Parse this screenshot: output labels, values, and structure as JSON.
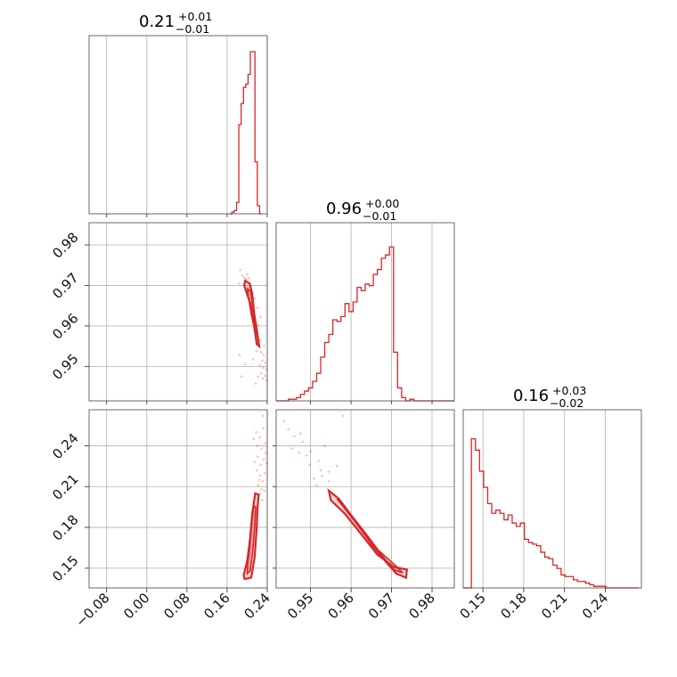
{
  "colors": {
    "series": "#d62728",
    "grid": "#b0b0b0",
    "frame": "#444444"
  },
  "chart_data": {
    "type": "corner",
    "grid": true,
    "parameters": [
      {
        "title": {
          "value": "0.21",
          "plus": "+0.01",
          "minus": "−0.01"
        },
        "range": [
          -0.115,
          0.24
        ],
        "ticks": [
          -0.08,
          0.0,
          0.08,
          0.16,
          0.24
        ],
        "tick_labels": [
          "−0.08",
          "0.00",
          "0.08",
          "0.16",
          "0.24"
        ],
        "histogram": {
          "bin_edges": [
            0.165,
            0.1696,
            0.1742,
            0.1788,
            0.1834,
            0.188,
            0.1926,
            0.1972,
            0.2018,
            0.2064,
            0.211,
            0.2156,
            0.2202,
            0.2248,
            0.2294
          ],
          "counts": [
            0,
            0.01,
            0.02,
            0.07,
            0.55,
            0.68,
            0.78,
            0.8,
            0.86,
            1.0,
            1.0,
            0.32,
            0.05,
            0.0
          ]
        }
      },
      {
        "title": {
          "value": "0.96",
          "plus": "+0.00",
          "minus": "−0.01"
        },
        "range": [
          0.9415,
          0.9855
        ],
        "ticks": [
          0.95,
          0.96,
          0.97,
          0.98
        ],
        "tick_labels": [
          "0.95",
          "0.96",
          "0.97",
          "0.98"
        ],
        "histogram": {
          "bin_edges": [
            0.9415,
            0.9425,
            0.9435,
            0.9445,
            0.9455,
            0.9465,
            0.9475,
            0.9485,
            0.9495,
            0.9505,
            0.9515,
            0.9525,
            0.9535,
            0.9545,
            0.9555,
            0.9565,
            0.9575,
            0.9585,
            0.9595,
            0.9605,
            0.9615,
            0.9625,
            0.9635,
            0.9645,
            0.9655,
            0.9665,
            0.9675,
            0.9685,
            0.9695,
            0.9705,
            0.9715,
            0.9725,
            0.9735,
            0.9745,
            0.9755,
            0.9765,
            0.9775,
            0.9785,
            0.9795,
            0.9805,
            0.9815,
            0.9825,
            0.9835,
            0.9845,
            0.9855
          ],
          "counts": [
            0.0,
            0.0,
            0.0,
            0.01,
            0.01,
            0.02,
            0.04,
            0.06,
            0.08,
            0.12,
            0.17,
            0.27,
            0.36,
            0.41,
            0.5,
            0.49,
            0.52,
            0.6,
            0.55,
            0.61,
            0.7,
            0.68,
            0.72,
            0.71,
            0.78,
            0.81,
            0.88,
            0.9,
            0.95,
            0.3,
            0.08,
            0.02,
            0.0,
            0.01,
            0.0,
            0.0,
            0.0,
            0.0,
            0.0,
            0.0,
            0.0,
            0.0,
            0.0,
            0.0
          ]
        }
      },
      {
        "title": {
          "value": "0.16",
          "plus": "+0.03",
          "minus": "−0.02"
        },
        "range": [
          0.1355,
          0.2665
        ],
        "ticks": [
          0.15,
          0.18,
          0.21,
          0.24
        ],
        "tick_labels": [
          "0.15",
          "0.18",
          "0.21",
          "0.24"
        ],
        "histogram": {
          "bin_edges": [
            0.1355,
            0.1385,
            0.1415,
            0.1445,
            0.1475,
            0.1505,
            0.1535,
            0.1565,
            0.1595,
            0.1625,
            0.1655,
            0.1685,
            0.1715,
            0.1745,
            0.1775,
            0.1805,
            0.1835,
            0.1865,
            0.1895,
            0.1925,
            0.1955,
            0.1985,
            0.2015,
            0.2045,
            0.2075,
            0.2105,
            0.2135,
            0.2165,
            0.2195,
            0.2225,
            0.2255,
            0.2285,
            0.2315,
            0.2345,
            0.2375,
            0.2405,
            0.2435,
            0.2465,
            0.2495,
            0.2525,
            0.2555,
            0.2585,
            0.2615,
            0.2645
          ],
          "counts": [
            0.0,
            0.0,
            0.92,
            0.85,
            0.72,
            0.62,
            0.52,
            0.46,
            0.48,
            0.46,
            0.42,
            0.45,
            0.4,
            0.38,
            0.4,
            0.3,
            0.28,
            0.27,
            0.26,
            0.22,
            0.19,
            0.18,
            0.14,
            0.12,
            0.08,
            0.07,
            0.07,
            0.05,
            0.04,
            0.04,
            0.03,
            0.02,
            0.01,
            0.01,
            0.01,
            0.0,
            0.0,
            0.0,
            0.0,
            0.0,
            0.0,
            0.0,
            0.0
          ]
        }
      }
    ],
    "pairs": [
      {
        "x_param": 0,
        "y_param": 1,
        "outer_contour": [
          [
            0.196,
            0.9712
          ],
          [
            0.205,
            0.9705
          ],
          [
            0.21,
            0.968
          ],
          [
            0.214,
            0.963
          ],
          [
            0.22,
            0.9585
          ],
          [
            0.224,
            0.955
          ],
          [
            0.219,
            0.9555
          ],
          [
            0.213,
            0.9608
          ],
          [
            0.207,
            0.9652
          ],
          [
            0.199,
            0.9682
          ],
          [
            0.194,
            0.97
          ]
        ],
        "inner_contour": [
          [
            0.201,
            0.9692
          ],
          [
            0.207,
            0.9685
          ],
          [
            0.211,
            0.965
          ],
          [
            0.216,
            0.9605
          ],
          [
            0.218,
            0.9578
          ],
          [
            0.214,
            0.9595
          ],
          [
            0.208,
            0.963
          ],
          [
            0.202,
            0.9675
          ]
        ],
        "samples": [
          [
            0.186,
            0.9738
          ],
          [
            0.19,
            0.9725
          ],
          [
            0.194,
            0.972
          ],
          [
            0.198,
            0.9716
          ],
          [
            0.203,
            0.9718
          ],
          [
            0.2,
            0.9728
          ],
          [
            0.184,
            0.9705
          ],
          [
            0.205,
            0.9695
          ],
          [
            0.215,
            0.9668
          ],
          [
            0.209,
            0.9657
          ],
          [
            0.221,
            0.9645
          ],
          [
            0.222,
            0.9602
          ],
          [
            0.226,
            0.9565
          ],
          [
            0.228,
            0.9535
          ],
          [
            0.233,
            0.9528
          ],
          [
            0.23,
            0.9515
          ],
          [
            0.236,
            0.951
          ],
          [
            0.225,
            0.9502
          ],
          [
            0.232,
            0.9497
          ],
          [
            0.238,
            0.9493
          ],
          [
            0.228,
            0.9483
          ],
          [
            0.236,
            0.9477
          ],
          [
            0.231,
            0.947
          ],
          [
            0.222,
            0.9475
          ],
          [
            0.239,
            0.9465
          ],
          [
            0.185,
            0.9528
          ],
          [
            0.196,
            0.9505
          ],
          [
            0.217,
            0.9458
          ],
          [
            0.189,
            0.9475
          ],
          [
            0.212,
            0.9517
          ],
          [
            0.227,
            0.9623
          ],
          [
            0.219,
            0.9538
          ],
          [
            0.234,
            0.9551
          ],
          [
            0.224,
            0.9548
          ]
        ]
      },
      {
        "x_param": 0,
        "y_param": 2,
        "outer_contour": [
          [
            0.195,
            0.142
          ],
          [
            0.208,
            0.143
          ],
          [
            0.215,
            0.158
          ],
          [
            0.219,
            0.18
          ],
          [
            0.221,
            0.196
          ],
          [
            0.223,
            0.204
          ],
          [
            0.216,
            0.205
          ],
          [
            0.21,
            0.19
          ],
          [
            0.206,
            0.172
          ],
          [
            0.2,
            0.155
          ],
          [
            0.193,
            0.145
          ]
        ],
        "inner_contour": [
          [
            0.2,
            0.146
          ],
          [
            0.206,
            0.148
          ],
          [
            0.211,
            0.162
          ],
          [
            0.215,
            0.18
          ],
          [
            0.217,
            0.195
          ],
          [
            0.213,
            0.196
          ],
          [
            0.209,
            0.182
          ],
          [
            0.205,
            0.165
          ],
          [
            0.201,
            0.153
          ]
        ],
        "samples": [
          [
            0.218,
            0.25
          ],
          [
            0.225,
            0.246
          ],
          [
            0.232,
            0.253
          ],
          [
            0.22,
            0.24
          ],
          [
            0.229,
            0.238
          ],
          [
            0.236,
            0.242
          ],
          [
            0.221,
            0.232
          ],
          [
            0.227,
            0.226
          ],
          [
            0.233,
            0.23
          ],
          [
            0.219,
            0.222
          ],
          [
            0.226,
            0.218
          ],
          [
            0.231,
            0.214
          ],
          [
            0.222,
            0.211
          ],
          [
            0.228,
            0.208
          ],
          [
            0.235,
            0.22
          ],
          [
            0.215,
            0.228
          ],
          [
            0.23,
            0.2
          ],
          [
            0.224,
            0.215
          ],
          [
            0.237,
            0.235
          ],
          [
            0.213,
            0.245
          ],
          [
            0.231,
            0.262
          ],
          [
            0.239,
            0.227
          ],
          [
            0.226,
            0.205
          ],
          [
            0.234,
            0.207
          ]
        ]
      },
      {
        "x_param": 1,
        "y_param": 2,
        "outer_contour": [
          [
            0.9545,
            0.207
          ],
          [
            0.957,
            0.201
          ],
          [
            0.9615,
            0.183
          ],
          [
            0.965,
            0.168
          ],
          [
            0.9685,
            0.155
          ],
          [
            0.9712,
            0.146
          ],
          [
            0.9736,
            0.143
          ],
          [
            0.9738,
            0.149
          ],
          [
            0.9705,
            0.151
          ],
          [
            0.9665,
            0.16
          ],
          [
            0.9625,
            0.175
          ],
          [
            0.9585,
            0.19
          ],
          [
            0.955,
            0.2
          ]
        ],
        "inner_contour": [
          [
            0.9565,
            0.201
          ],
          [
            0.9605,
            0.186
          ],
          [
            0.9645,
            0.17
          ],
          [
            0.968,
            0.158
          ],
          [
            0.9705,
            0.149
          ],
          [
            0.9728,
            0.1465
          ],
          [
            0.9706,
            0.153
          ],
          [
            0.9668,
            0.163
          ],
          [
            0.963,
            0.178
          ],
          [
            0.959,
            0.193
          ]
        ],
        "samples": [
          [
            0.9435,
            0.258
          ],
          [
            0.946,
            0.247
          ],
          [
            0.948,
            0.243
          ],
          [
            0.95,
            0.236
          ],
          [
            0.952,
            0.229
          ],
          [
            0.9525,
            0.222
          ],
          [
            0.9545,
            0.221
          ],
          [
            0.949,
            0.233
          ],
          [
            0.9545,
            0.214
          ],
          [
            0.9508,
            0.216
          ],
          [
            0.9475,
            0.249
          ],
          [
            0.9535,
            0.24
          ],
          [
            0.958,
            0.262
          ],
          [
            0.9455,
            0.238
          ],
          [
            0.9515,
            0.211
          ],
          [
            0.9565,
            0.225
          ],
          [
            0.9498,
            0.226
          ],
          [
            0.9472,
            0.235
          ],
          [
            0.9528,
            0.218
          ],
          [
            0.9553,
            0.205
          ],
          [
            0.9445,
            0.252
          ]
        ]
      }
    ]
  }
}
